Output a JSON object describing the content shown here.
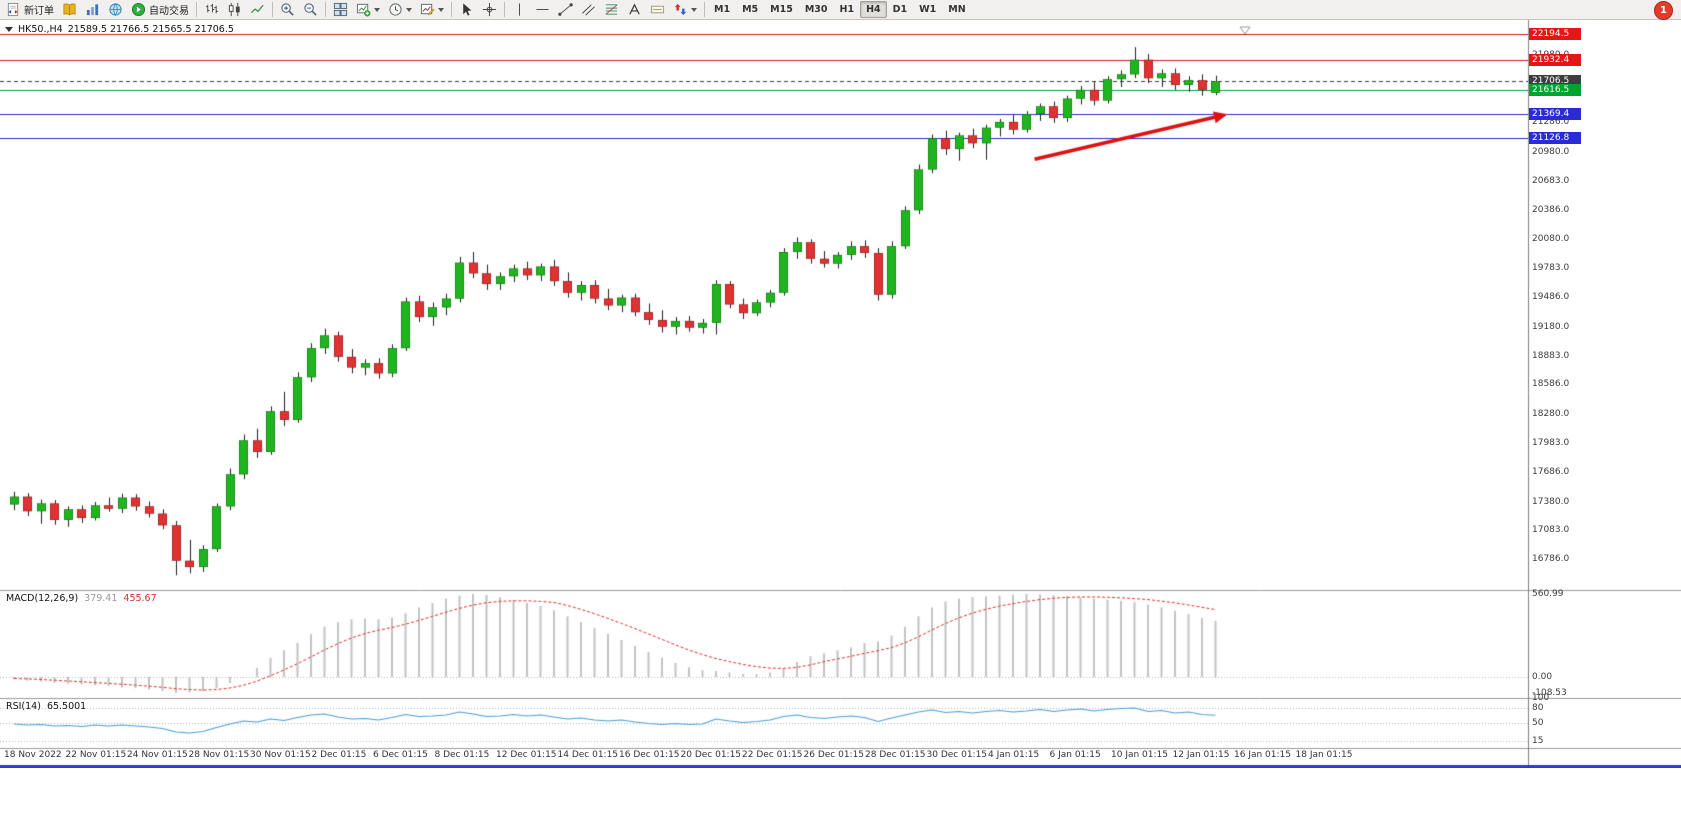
{
  "window": {
    "notification_badge": "1"
  },
  "toolbar": {
    "groups": [
      {
        "name": "trade",
        "items": [
          {
            "name": "new-order-button",
            "icon": "new-order",
            "label": "新订单"
          },
          {
            "name": "market-book-button",
            "icon": "book"
          },
          {
            "name": "data-window-button",
            "icon": "columns"
          },
          {
            "name": "news-globe-button",
            "icon": "globe"
          },
          {
            "name": "autotrading-button",
            "icon": "play",
            "label": "自动交易"
          }
        ]
      },
      {
        "name": "chart-type",
        "items": [
          {
            "name": "bar-chart-button",
            "icon": "bars"
          },
          {
            "name": "candlestick-chart-button",
            "icon": "candles"
          },
          {
            "name": "line-chart-button",
            "icon": "linechart"
          }
        ]
      },
      {
        "name": "zoom",
        "items": [
          {
            "name": "zoom-in-button",
            "icon": "zoom-in"
          },
          {
            "name": "zoom-out-button",
            "icon": "zoom-out"
          }
        ]
      },
      {
        "name": "windows",
        "items": [
          {
            "name": "tile-windows-button",
            "icon": "tile"
          },
          {
            "name": "new-chart-button",
            "icon": "new-chart",
            "dropdown": true
          },
          {
            "name": "profiles-button",
            "icon": "clock",
            "dropdown": true
          },
          {
            "name": "templates-button",
            "icon": "template",
            "dropdown": true
          }
        ]
      },
      {
        "name": "pointer",
        "items": [
          {
            "name": "cursor-button",
            "icon": "cursor"
          },
          {
            "name": "crosshair-button",
            "icon": "crosshair"
          }
        ]
      },
      {
        "name": "objects",
        "items": [
          {
            "name": "vertical-line-button",
            "icon": "vline"
          },
          {
            "name": "horizontal-line-button",
            "icon": "hline"
          },
          {
            "name": "trendline-button",
            "icon": "trendline"
          },
          {
            "name": "channel-button",
            "icon": "channel"
          },
          {
            "name": "fibonacci-button",
            "icon": "fibonacci"
          },
          {
            "name": "text-button",
            "icon": "text"
          },
          {
            "name": "text-label-button",
            "icon": "label"
          },
          {
            "name": "arrows-button",
            "icon": "arrows",
            "dropdown": true
          }
        ]
      },
      {
        "name": "timeframes",
        "items": [
          {
            "name": "timeframe-m1-button",
            "label": "M1"
          },
          {
            "name": "timeframe-m5-button",
            "label": "M5"
          },
          {
            "name": "timeframe-m15-button",
            "label": "M15"
          },
          {
            "name": "timeframe-m30-button",
            "label": "M30"
          },
          {
            "name": "timeframe-h1-button",
            "label": "H1"
          },
          {
            "name": "timeframe-h4-button",
            "label": "H4",
            "active": true
          },
          {
            "name": "timeframe-d1-button",
            "label": "D1"
          },
          {
            "name": "timeframe-w1-button",
            "label": "W1"
          },
          {
            "name": "timeframe-mn-button",
            "label": "MN"
          }
        ]
      }
    ]
  },
  "chart": {
    "symbol_period": "HK50.,H4",
    "ohlc_text": "21589.5 21766.5 21565.5 21706.5"
  },
  "chart_data": {
    "type": "candlestick",
    "symbol": "HK50.",
    "timeframe": "H4",
    "ohlc_header": {
      "open": 21589.5,
      "high": 21766.5,
      "low": 21565.5,
      "close": 21706.5
    },
    "levels": [
      {
        "text": "22194.5",
        "price": 22194.5,
        "color": "red",
        "style": "solid"
      },
      {
        "text": "21932.4",
        "price": 21932.4,
        "color": "red",
        "style": "solid"
      },
      {
        "text": "21706.5",
        "price": 21706.5,
        "color": "dark",
        "style": "dashed",
        "role": "current-price"
      },
      {
        "text": "21616.5",
        "price": 21616.5,
        "color": "green",
        "style": "solid"
      },
      {
        "text": "21369.4",
        "price": 21369.4,
        "color": "blue",
        "style": "solid"
      },
      {
        "text": "21126.8",
        "price": 21126.8,
        "color": "blue",
        "style": "solid"
      }
    ],
    "price_axis_labels": [
      {
        "text": "21980.0",
        "price": 21980
      },
      {
        "text": "21286.0",
        "price": 21286
      },
      {
        "text": "20980.0",
        "price": 20980
      },
      {
        "text": "20683.0",
        "price": 20683
      },
      {
        "text": "20386.0",
        "price": 20386
      },
      {
        "text": "20080.0",
        "price": 20080
      },
      {
        "text": "19783.0",
        "price": 19783
      },
      {
        "text": "19486.0",
        "price": 19486
      },
      {
        "text": "19180.0",
        "price": 19180
      },
      {
        "text": "18883.0",
        "price": 18883
      },
      {
        "text": "18586.0",
        "price": 18586
      },
      {
        "text": "18280.0",
        "price": 18280
      },
      {
        "text": "17983.0",
        "price": 17983
      },
      {
        "text": "17686.0",
        "price": 17686
      },
      {
        "text": "17380.0",
        "price": 17380
      },
      {
        "text": "17083.0",
        "price": 17083
      },
      {
        "text": "16786.0",
        "price": 16786
      }
    ],
    "time_axis_labels": [
      "18 Nov 2022",
      "22 Nov 01:15",
      "24 Nov 01:15",
      "28 Nov 01:15",
      "30 Nov 01:15",
      "2 Dec 01:15",
      "6 Dec 01:15",
      "8 Dec 01:15",
      "12 Dec 01:15",
      "14 Dec 01:15",
      "16 Dec 01:15",
      "20 Dec 01:15",
      "22 Dec 01:15",
      "26 Dec 01:15",
      "28 Dec 01:15",
      "30 Dec 01:15",
      "4 Jan 01:15",
      "6 Jan 01:15",
      "10 Jan 01:15",
      "12 Jan 01:15",
      "16 Jan 01:15",
      "18 Jan 01:15"
    ],
    "candles": [
      [
        17350,
        17480,
        17290,
        17430
      ],
      [
        17430,
        17465,
        17230,
        17280
      ],
      [
        17280,
        17400,
        17150,
        17360
      ],
      [
        17360,
        17395,
        17140,
        17190
      ],
      [
        17190,
        17330,
        17120,
        17300
      ],
      [
        17300,
        17340,
        17160,
        17210
      ],
      [
        17210,
        17375,
        17185,
        17340
      ],
      [
        17340,
        17420,
        17275,
        17305
      ],
      [
        17305,
        17460,
        17260,
        17420
      ],
      [
        17420,
        17455,
        17285,
        17330
      ],
      [
        17330,
        17380,
        17215,
        17255
      ],
      [
        17255,
        17300,
        17095,
        17135
      ],
      [
        17135,
        17180,
        16620,
        16770
      ],
      [
        16770,
        16985,
        16640,
        16705
      ],
      [
        16705,
        16930,
        16655,
        16890
      ],
      [
        16890,
        17360,
        16860,
        17330
      ],
      [
        17330,
        17720,
        17290,
        17660
      ],
      [
        17660,
        18070,
        17610,
        18010
      ],
      [
        18010,
        18130,
        17830,
        17890
      ],
      [
        17890,
        18360,
        17860,
        18310
      ],
      [
        18310,
        18510,
        18160,
        18220
      ],
      [
        18220,
        18710,
        18190,
        18660
      ],
      [
        18660,
        19010,
        18610,
        18960
      ],
      [
        18960,
        19160,
        18900,
        19090
      ],
      [
        19090,
        19130,
        18820,
        18870
      ],
      [
        18870,
        18950,
        18700,
        18760
      ],
      [
        18760,
        18845,
        18680,
        18805
      ],
      [
        18805,
        18855,
        18645,
        18700
      ],
      [
        18700,
        19000,
        18660,
        18960
      ],
      [
        18960,
        19480,
        18930,
        19440
      ],
      [
        19440,
        19500,
        19230,
        19280
      ],
      [
        19280,
        19430,
        19190,
        19380
      ],
      [
        19380,
        19520,
        19300,
        19470
      ],
      [
        19470,
        19900,
        19430,
        19840
      ],
      [
        19840,
        19950,
        19680,
        19730
      ],
      [
        19730,
        19820,
        19560,
        19620
      ],
      [
        19620,
        19740,
        19560,
        19700
      ],
      [
        19700,
        19820,
        19640,
        19780
      ],
      [
        19780,
        19850,
        19660,
        19710
      ],
      [
        19710,
        19830,
        19650,
        19800
      ],
      [
        19800,
        19870,
        19600,
        19650
      ],
      [
        19650,
        19740,
        19480,
        19530
      ],
      [
        19530,
        19650,
        19450,
        19610
      ],
      [
        19610,
        19660,
        19420,
        19470
      ],
      [
        19470,
        19570,
        19350,
        19400
      ],
      [
        19400,
        19510,
        19330,
        19480
      ],
      [
        19480,
        19520,
        19290,
        19330
      ],
      [
        19330,
        19420,
        19200,
        19250
      ],
      [
        19250,
        19350,
        19120,
        19180
      ],
      [
        19180,
        19280,
        19100,
        19240
      ],
      [
        19240,
        19290,
        19130,
        19170
      ],
      [
        19170,
        19260,
        19110,
        19220
      ],
      [
        19220,
        19660,
        19100,
        19620
      ],
      [
        19620,
        19650,
        19370,
        19410
      ],
      [
        19410,
        19470,
        19260,
        19320
      ],
      [
        19320,
        19460,
        19290,
        19430
      ],
      [
        19430,
        19560,
        19380,
        19530
      ],
      [
        19530,
        19990,
        19500,
        19950
      ],
      [
        19950,
        20100,
        19880,
        20050
      ],
      [
        20050,
        20080,
        19830,
        19880
      ],
      [
        19880,
        19960,
        19790,
        19830
      ],
      [
        19830,
        19950,
        19780,
        19920
      ],
      [
        19920,
        20060,
        19870,
        20010
      ],
      [
        20010,
        20070,
        19890,
        19940
      ],
      [
        19940,
        19990,
        19450,
        19510
      ],
      [
        19510,
        20060,
        19470,
        20010
      ],
      [
        20010,
        20420,
        19980,
        20380
      ],
      [
        20380,
        20850,
        20340,
        20800
      ],
      [
        20800,
        21160,
        20760,
        21120
      ],
      [
        21120,
        21200,
        20950,
        21010
      ],
      [
        21010,
        21180,
        20890,
        21150
      ],
      [
        21150,
        21220,
        21020,
        21070
      ],
      [
        21070,
        21260,
        20900,
        21230
      ],
      [
        21230,
        21320,
        21140,
        21290
      ],
      [
        21290,
        21360,
        21160,
        21210
      ],
      [
        21210,
        21400,
        21180,
        21370
      ],
      [
        21370,
        21480,
        21300,
        21450
      ],
      [
        21450,
        21500,
        21280,
        21330
      ],
      [
        21330,
        21560,
        21290,
        21530
      ],
      [
        21530,
        21660,
        21470,
        21620
      ],
      [
        21620,
        21700,
        21460,
        21510
      ],
      [
        21510,
        21760,
        21480,
        21730
      ],
      [
        21730,
        21820,
        21650,
        21780
      ],
      [
        21780,
        22060,
        21740,
        21930
      ],
      [
        21930,
        21990,
        21690,
        21740
      ],
      [
        21740,
        21830,
        21650,
        21790
      ],
      [
        21790,
        21840,
        21620,
        21670
      ],
      [
        21670,
        21760,
        21600,
        21720
      ],
      [
        21720,
        21780,
        21560,
        21620
      ],
      [
        21589.5,
        21766.5,
        21565.5,
        21706.5
      ]
    ],
    "indicators": {
      "macd": {
        "label": "MACD(12,26,9)",
        "main_value": "379.41",
        "signal_value": "455.67",
        "axis_labels": [
          {
            "text": "560.99",
            "value": 560.99
          },
          {
            "text": "0.00",
            "value": 0
          },
          {
            "text": "-108.53",
            "value": -108.53
          }
        ],
        "histogram": [
          -15,
          -25,
          -30,
          -40,
          -45,
          -50,
          -55,
          -60,
          -70,
          -75,
          -85,
          -95,
          -108.5,
          -105,
          -95,
          -75,
          -40,
          0,
          60,
          130,
          180,
          230,
          290,
          340,
          370,
          390,
          395,
          390,
          400,
          430,
          470,
          500,
          530,
          550,
          561,
          555,
          540,
          520,
          500,
          480,
          450,
          410,
          370,
          330,
          290,
          250,
          210,
          170,
          130,
          95,
          65,
          45,
          40,
          30,
          20,
          18,
          30,
          60,
          100,
          140,
          160,
          180,
          200,
          230,
          240,
          280,
          340,
          410,
          470,
          510,
          530,
          540,
          545,
          550,
          555,
          561,
          558,
          552,
          545,
          538,
          530,
          522,
          514,
          505,
          490,
          470,
          448,
          425,
          400,
          379.41
        ],
        "signal": [
          -10,
          -13,
          -17,
          -22,
          -27,
          -32,
          -38,
          -43,
          -49,
          -55,
          -62,
          -70,
          -79,
          -85,
          -88,
          -85,
          -74,
          -56,
          -28,
          8,
          48,
          90,
          136,
          183,
          226,
          264,
          294,
          316,
          335,
          357,
          383,
          410,
          438,
          464,
          486,
          502,
          511,
          515,
          515,
          511,
          504,
          483,
          457,
          428,
          396,
          362,
          327,
          291,
          254,
          217,
          182,
          151,
          125,
          104,
          85,
          70,
          60,
          58,
          65,
          82,
          104,
          122,
          140,
          160,
          178,
          199,
          231,
          272,
          318,
          362,
          400,
          432,
          458,
          479,
          496,
          511,
          523,
          532,
          538,
          541,
          541,
          539,
          535,
          530,
          523,
          513,
          501,
          487,
          471,
          455.67
        ]
      },
      "rsi": {
        "label": "RSI(14)",
        "value": "65.5001",
        "axis_labels": [
          {
            "text": "100",
            "value": 100
          },
          {
            "text": "80",
            "value": 80
          },
          {
            "text": "50",
            "value": 50
          },
          {
            "text": "15",
            "value": 15
          }
        ],
        "levels": [
          80,
          50,
          15
        ],
        "values": [
          48,
          46,
          47,
          44,
          45,
          43,
          46,
          44,
          46,
          44,
          42,
          39,
          32,
          30,
          33,
          41,
          48,
          54,
          52,
          58,
          55,
          61,
          66,
          68,
          62,
          58,
          59,
          56,
          61,
          67,
          63,
          64,
          66,
          72,
          68,
          63,
          64,
          67,
          64,
          66,
          62,
          58,
          60,
          56,
          54,
          56,
          52,
          49,
          47,
          49,
          47,
          48,
          58,
          54,
          51,
          53,
          56,
          63,
          66,
          61,
          59,
          62,
          64,
          61,
          53,
          60,
          66,
          72,
          76,
          71,
          73,
          70,
          73,
          75,
          72,
          74,
          77,
          73,
          76,
          78,
          74,
          77,
          79,
          80,
          73,
          75,
          70,
          72,
          67,
          65.5
        ]
      }
    },
    "annotation": {
      "arrow": {
        "from_index": 75.6,
        "from_price": 20905,
        "to_index": 89.9,
        "to_price": 21369
      }
    }
  },
  "colors": {
    "bull": "#1FB51F",
    "bear": "#E03232",
    "wick": "#222222",
    "macd_hist": "#C3C3C3",
    "macd_signal": "#E03232",
    "rsi_line": "#4B9FD8",
    "level_red": "#E51616",
    "level_green": "#00A42C",
    "level_blue": "#2B2BD4",
    "price_dark": "#3D3D3D",
    "arrow": "#DD1111",
    "bottom_bar": "#2F3CC3"
  }
}
